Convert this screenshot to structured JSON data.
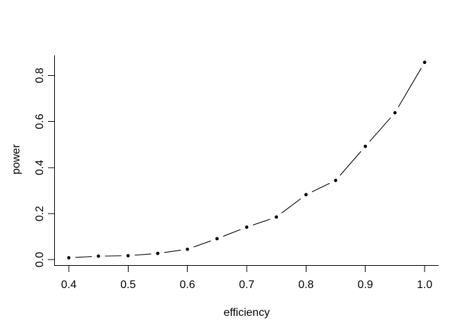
{
  "page": {
    "background": "#ffffff"
  },
  "chart_data": {
    "type": "line",
    "style": "r-base-plot type='b' (points joined by trimmed line segments)",
    "title": "",
    "xlabel": "efficiency",
    "ylabel": "power",
    "x": [
      0.4,
      0.45,
      0.5,
      0.55,
      0.6,
      0.65,
      0.7,
      0.75,
      0.8,
      0.85,
      0.9,
      0.95,
      1.0
    ],
    "y": [
      0.008,
      0.015,
      0.017,
      0.027,
      0.045,
      0.091,
      0.141,
      0.185,
      0.282,
      0.344,
      0.492,
      0.638,
      0.857
    ],
    "series_name": "power",
    "xlim": [
      0.376,
      1.024
    ],
    "ylim": [
      -0.0254,
      0.8876
    ],
    "xticks": {
      "values": [
        0.4,
        0.5,
        0.6,
        0.7,
        0.8,
        0.9,
        1.0
      ],
      "labels": [
        "0.4",
        "0.5",
        "0.6",
        "0.7",
        "0.8",
        "0.9",
        "1.0"
      ]
    },
    "yticks": {
      "values": [
        0.0,
        0.2,
        0.4,
        0.6,
        0.8
      ],
      "labels": [
        "0.0",
        "0.2",
        "0.4",
        "0.6",
        "0.8"
      ]
    },
    "grid": false,
    "legend": null,
    "box_type": "L",
    "marker": "filled-circle",
    "colors": {
      "background": "#ffffff",
      "axis": "#000000",
      "line": "#000000",
      "point": "#000000",
      "text": "#000000"
    }
  }
}
